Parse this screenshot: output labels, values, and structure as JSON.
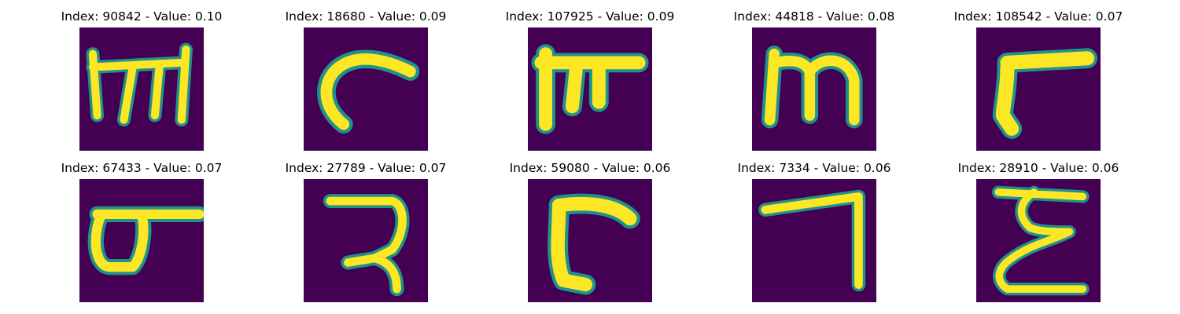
{
  "figure": {
    "background": "#ffffff",
    "colormap": "viridis",
    "background_color": "#440154",
    "stroke_color": "#fde725",
    "edge_color": "#21918c",
    "panels": [
      {
        "title": "Index: 90842 - Value: 0.10",
        "index": 90842,
        "value": 0.1
      },
      {
        "title": "Index: 18680 - Value: 0.09",
        "index": 18680,
        "value": 0.09
      },
      {
        "title": "Index: 107925 - Value: 0.09",
        "index": 107925,
        "value": 0.09
      },
      {
        "title": "Index: 44818 - Value: 0.08",
        "index": 44818,
        "value": 0.08
      },
      {
        "title": "Index: 108542 - Value: 0.07",
        "index": 108542,
        "value": 0.07
      },
      {
        "title": "Index: 67433 - Value: 0.07",
        "index": 67433,
        "value": 0.07
      },
      {
        "title": "Index: 27789 - Value: 0.07",
        "index": 27789,
        "value": 0.07
      },
      {
        "title": "Index: 59080 - Value: 0.06",
        "index": 59080,
        "value": 0.06
      },
      {
        "title": "Index: 7334 - Value: 0.06",
        "index": 7334,
        "value": 0.06
      },
      {
        "title": "Index: 28910 - Value: 0.06",
        "index": 28910,
        "value": 0.06
      }
    ]
  }
}
